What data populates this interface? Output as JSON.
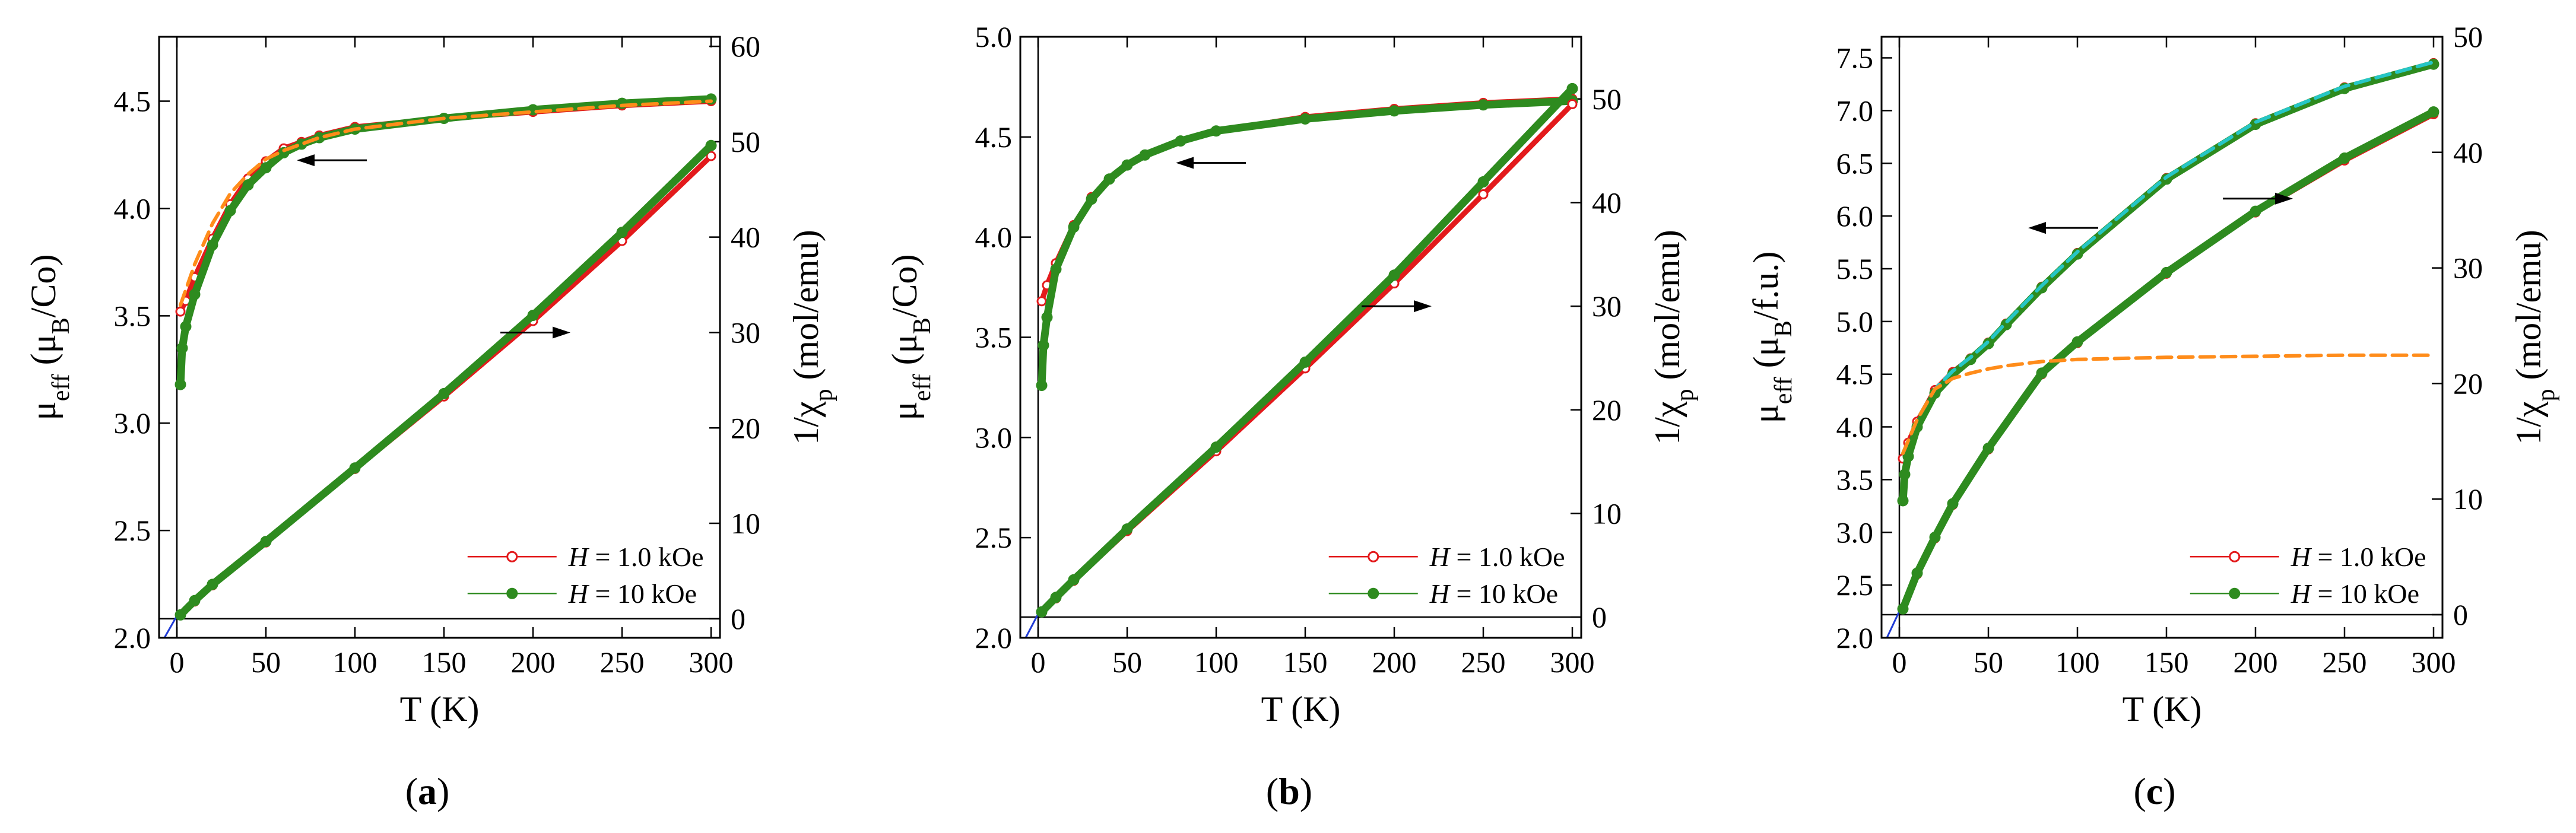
{
  "chart_data": [
    {
      "type": "line",
      "panel_label": "a",
      "xlabel": "T (K)",
      "ylabel_left": "μeff (μB/Co)",
      "ylabel_right": "1/χp (mol/emu)",
      "xlim": [
        -10,
        305
      ],
      "ylim_left": [
        2.0,
        4.8
      ],
      "ylim_right": [
        -2,
        61
      ],
      "x_ticks": [
        0,
        50,
        100,
        150,
        200,
        250,
        300
      ],
      "left_ticks": [
        2.0,
        2.5,
        3.0,
        3.5,
        4.0,
        4.5
      ],
      "right_ticks": [
        0,
        10,
        20,
        30,
        40,
        50,
        60
      ],
      "legend": [
        "H = 1.0 kOe",
        "H = 10  kOe"
      ],
      "series": [
        {
          "name": "μeff, H = 1.0 kOe",
          "axis": "left",
          "color": "#e31a1c",
          "x": [
            2,
            5,
            10,
            20,
            30,
            40,
            50,
            60,
            70,
            80,
            100,
            150,
            200,
            250,
            300
          ],
          "y": [
            3.52,
            3.57,
            3.68,
            3.86,
            4.02,
            4.14,
            4.22,
            4.28,
            4.31,
            4.34,
            4.38,
            4.42,
            4.45,
            4.48,
            4.5
          ]
        },
        {
          "name": "μeff, H = 10 kOe",
          "axis": "left",
          "color": "#2e8b1f",
          "x": [
            2,
            3,
            5,
            10,
            20,
            30,
            40,
            50,
            60,
            70,
            80,
            100,
            150,
            200,
            250,
            300
          ],
          "y": [
            3.18,
            3.35,
            3.45,
            3.6,
            3.83,
            3.99,
            4.11,
            4.19,
            4.26,
            4.3,
            4.33,
            4.37,
            4.42,
            4.46,
            4.49,
            4.51
          ]
        },
        {
          "name": "μeff fit",
          "axis": "left",
          "color": "#ff8c1a",
          "dashed": true,
          "x": [
            2,
            10,
            20,
            30,
            40,
            50,
            60,
            80,
            100,
            150,
            200,
            250,
            300
          ],
          "y": [
            3.55,
            3.74,
            3.93,
            4.07,
            4.16,
            4.23,
            4.27,
            4.33,
            4.37,
            4.42,
            4.45,
            4.48,
            4.5
          ]
        },
        {
          "name": "1/χp, H = 1.0 kOe",
          "axis": "right",
          "color": "#e31a1c",
          "x": [
            2,
            10,
            20,
            50,
            100,
            150,
            200,
            250,
            300
          ],
          "y": [
            0.4,
            1.8,
            3.5,
            8.0,
            15.7,
            23.3,
            31.2,
            39.6,
            48.5
          ]
        },
        {
          "name": "1/χp, H = 10 kOe",
          "axis": "right",
          "color": "#2e8b1f",
          "x": [
            2,
            10,
            20,
            50,
            100,
            150,
            200,
            250,
            300
          ],
          "y": [
            0.4,
            1.9,
            3.6,
            8.1,
            15.8,
            23.6,
            31.8,
            40.5,
            49.6
          ]
        }
      ],
      "annotations": [
        {
          "type": "arrow",
          "direction": "left",
          "points_to": "μeff curves",
          "at": [
            70,
            4.28
          ]
        },
        {
          "type": "arrow",
          "direction": "right",
          "points_to": "1/χp curves",
          "at": [
            200,
            30.0
          ]
        }
      ]
    },
    {
      "type": "line",
      "panel_label": "b",
      "xlabel": "T (K)",
      "ylabel_left": "μeff (μB/Co)",
      "ylabel_right": "1/χp (mol/emu)",
      "xlim": [
        -10,
        305
      ],
      "ylim_left": [
        2.0,
        5.0
      ],
      "ylim_right": [
        -2,
        56
      ],
      "x_ticks": [
        0,
        50,
        100,
        150,
        200,
        250,
        300
      ],
      "left_ticks": [
        2.0,
        2.5,
        3.0,
        3.5,
        4.0,
        4.5,
        5.0
      ],
      "right_ticks": [
        0,
        10,
        20,
        30,
        40,
        50
      ],
      "legend": [
        "H = 1.0 kOe",
        "H = 10  kOe"
      ],
      "series": [
        {
          "name": "μeff, H = 1.0 kOe",
          "axis": "left",
          "color": "#e31a1c",
          "x": [
            2,
            5,
            10,
            20,
            30,
            40,
            50,
            60,
            80,
            100,
            150,
            200,
            250,
            300
          ],
          "y": [
            3.68,
            3.76,
            3.87,
            4.06,
            4.2,
            4.29,
            4.36,
            4.41,
            4.48,
            4.53,
            4.6,
            4.64,
            4.67,
            4.69
          ]
        },
        {
          "name": "μeff, H = 10 kOe",
          "axis": "left",
          "color": "#2e8b1f",
          "x": [
            2,
            3,
            5,
            10,
            20,
            30,
            40,
            50,
            60,
            80,
            100,
            150,
            200,
            250,
            300
          ],
          "y": [
            3.26,
            3.46,
            3.6,
            3.84,
            4.05,
            4.19,
            4.29,
            4.36,
            4.41,
            4.48,
            4.53,
            4.59,
            4.63,
            4.66,
            4.68
          ]
        },
        {
          "name": "1/χp, H = 1.0 kOe",
          "axis": "right",
          "color": "#e31a1c",
          "x": [
            2,
            10,
            20,
            50,
            100,
            150,
            200,
            250,
            300
          ],
          "y": [
            0.5,
            1.8,
            3.5,
            8.3,
            16.0,
            24.0,
            32.2,
            40.8,
            49.5
          ]
        },
        {
          "name": "1/χp, H = 10 kOe",
          "axis": "right",
          "color": "#2e8b1f",
          "x": [
            2,
            10,
            20,
            50,
            100,
            150,
            200,
            250,
            300
          ],
          "y": [
            0.5,
            1.9,
            3.6,
            8.5,
            16.4,
            24.6,
            33.0,
            42.0,
            51.0
          ]
        }
      ],
      "annotations": [
        {
          "type": "arrow",
          "direction": "left",
          "points_to": "μeff curves",
          "at": [
            80,
            4.43
          ]
        },
        {
          "type": "arrow",
          "direction": "right",
          "points_to": "1/χp curves",
          "at": [
            200,
            30.0
          ]
        }
      ]
    },
    {
      "type": "line",
      "panel_label": "c",
      "xlabel": "T (K)",
      "ylabel_left": "μeff (μB/f.u.)",
      "ylabel_right": "1/χp (mol/emu)",
      "xlim": [
        -10,
        305
      ],
      "ylim_left": [
        2.0,
        7.7
      ],
      "ylim_right": [
        -2,
        50
      ],
      "x_ticks": [
        0,
        50,
        100,
        150,
        200,
        250,
        300
      ],
      "left_ticks": [
        2.0,
        2.5,
        3.0,
        3.5,
        4.0,
        4.5,
        5.0,
        5.5,
        6.0,
        6.5,
        7.0,
        7.5
      ],
      "right_ticks": [
        0,
        10,
        20,
        30,
        40,
        50
      ],
      "legend": [
        "H = 1.0 kOe",
        "H = 10  kOe"
      ],
      "series": [
        {
          "name": "μeff, H = 1.0 kOe",
          "axis": "left",
          "color": "#e31a1c",
          "x": [
            2,
            5,
            10,
            20,
            30,
            40,
            50,
            60,
            80,
            100,
            150,
            200,
            250,
            300
          ],
          "y": [
            3.7,
            3.85,
            4.05,
            4.35,
            4.52,
            4.65,
            4.8,
            4.98,
            5.33,
            5.65,
            6.36,
            6.88,
            7.22,
            7.45
          ]
        },
        {
          "name": "μeff, H = 10 kOe",
          "axis": "left",
          "color": "#2e8b1f",
          "x": [
            2,
            3,
            5,
            10,
            20,
            30,
            40,
            50,
            60,
            80,
            100,
            150,
            200,
            250,
            300
          ],
          "y": [
            3.3,
            3.55,
            3.72,
            4.0,
            4.32,
            4.5,
            4.64,
            4.79,
            4.97,
            5.32,
            5.64,
            6.35,
            6.87,
            7.21,
            7.44
          ]
        },
        {
          "name": "μeff fit (total)",
          "axis": "left",
          "color": "#26c6c6",
          "dashed": true,
          "x": [
            2,
            10,
            20,
            30,
            40,
            50,
            60,
            80,
            100,
            150,
            200,
            250,
            300
          ],
          "y": [
            3.75,
            4.07,
            4.36,
            4.53,
            4.66,
            4.81,
            4.99,
            5.34,
            5.66,
            6.37,
            6.89,
            7.23,
            7.46
          ]
        },
        {
          "name": "μeff fit (component)",
          "axis": "left",
          "color": "#ff8c1a",
          "dashed": true,
          "x": [
            2,
            10,
            20,
            30,
            40,
            50,
            60,
            80,
            100,
            150,
            200,
            250,
            300
          ],
          "y": [
            3.75,
            4.07,
            4.36,
            4.46,
            4.51,
            4.55,
            4.58,
            4.62,
            4.64,
            4.66,
            4.67,
            4.68,
            4.68
          ]
        },
        {
          "name": "1/χp, H = 1.0 kOe",
          "axis": "right",
          "color": "#e31a1c",
          "x": [
            2,
            10,
            20,
            30,
            50,
            80,
            100,
            150,
            200,
            250,
            300
          ],
          "y": [
            0.5,
            3.5,
            6.6,
            9.5,
            14.3,
            20.8,
            23.5,
            29.5,
            34.8,
            39.3,
            43.3
          ]
        },
        {
          "name": "1/χp, H = 10 kOe",
          "axis": "right",
          "color": "#2e8b1f",
          "x": [
            2,
            10,
            20,
            30,
            50,
            80,
            100,
            150,
            200,
            250,
            300
          ],
          "y": [
            0.5,
            3.6,
            6.7,
            9.6,
            14.4,
            20.9,
            23.6,
            29.6,
            34.9,
            39.5,
            43.5
          ]
        }
      ],
      "annotations": [
        {
          "type": "arrow",
          "direction": "left",
          "points_to": "μeff curves",
          "at": [
            75,
            6.0
          ]
        },
        {
          "type": "arrow",
          "direction": "right",
          "points_to": "1/χp curves",
          "at": [
            200,
            36.0
          ]
        }
      ]
    }
  ]
}
